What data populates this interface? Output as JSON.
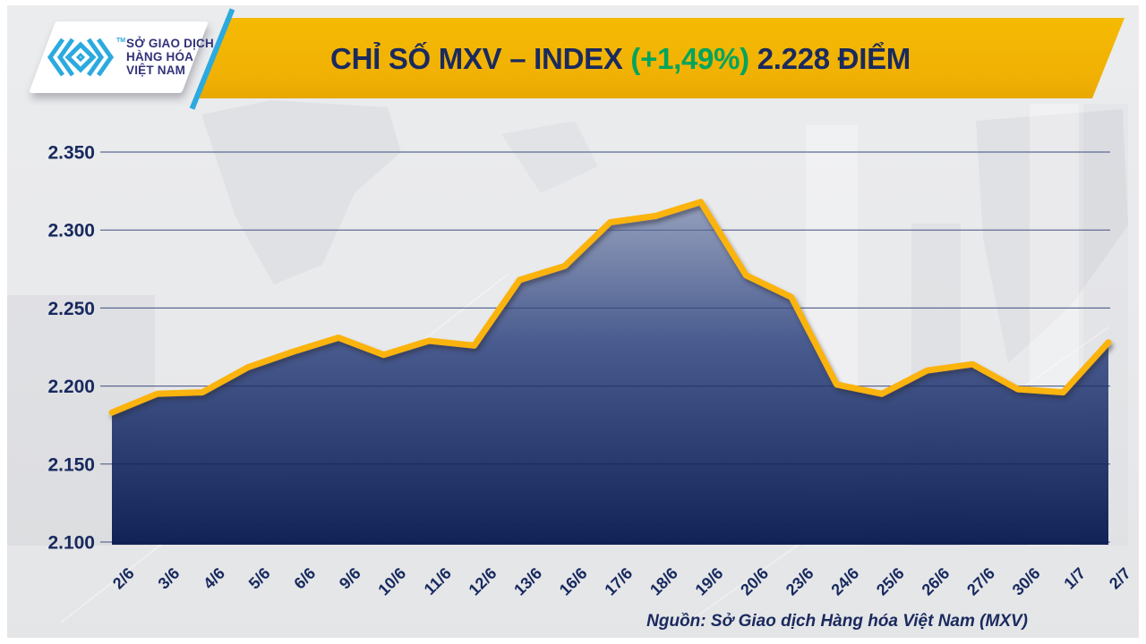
{
  "header": {
    "title_main": "CHỈ SỐ MXV – INDEX",
    "title_change": "(+1,49%)",
    "title_points": "2.228 ĐIỂM"
  },
  "logo": {
    "org_line1": "SỞ GIAO DỊCH",
    "org_line2": "HÀNG HÓA",
    "org_line3": "VIỆT NAM",
    "trademark": "TM"
  },
  "footer": {
    "source": "Nguồn: Sở Giao dịch Hàng hóa Việt Nam (MXV)"
  },
  "colors": {
    "banner_gold": "#F1B104",
    "navy": "#1A2A5E",
    "green": "#00A45C",
    "line_gold": "#FBB30B",
    "cyan": "#2CAADF",
    "fill_top": "#97A2BE",
    "fill_bottom": "#0A1C52"
  },
  "icons": {
    "logo_mark": "mxv-chevron-mark"
  },
  "chart_data": {
    "type": "area",
    "title": "CHỈ SỐ MXV – INDEX (+1,49%) 2.228 ĐIỂM",
    "x": [
      "2/6",
      "3/6",
      "4/6",
      "5/6",
      "6/6",
      "9/6",
      "10/6",
      "11/6",
      "12/6",
      "13/6",
      "16/6",
      "17/6",
      "18/6",
      "19/6",
      "20/6",
      "23/6",
      "24/6",
      "25/6",
      "26/6",
      "27/6",
      "30/6",
      "1/7",
      "2/7"
    ],
    "values": [
      2183,
      2195,
      2196,
      2212,
      2222,
      2231,
      2220,
      2229,
      2226,
      2268,
      2277,
      2305,
      2309,
      2318,
      2271,
      2257,
      2201,
      2195,
      2210,
      2214,
      2198,
      2196,
      2228
    ],
    "unit": "điểm",
    "y_ticks": [
      "2.100",
      "2.150",
      "2.200",
      "2.250",
      "2.300",
      "2.350"
    ],
    "ylim": [
      2100,
      2350
    ],
    "xlabel": "",
    "ylabel": "",
    "grid": "horizontal",
    "legend": "none",
    "last_value_label": "2.228",
    "change_label": "+1,49%"
  }
}
